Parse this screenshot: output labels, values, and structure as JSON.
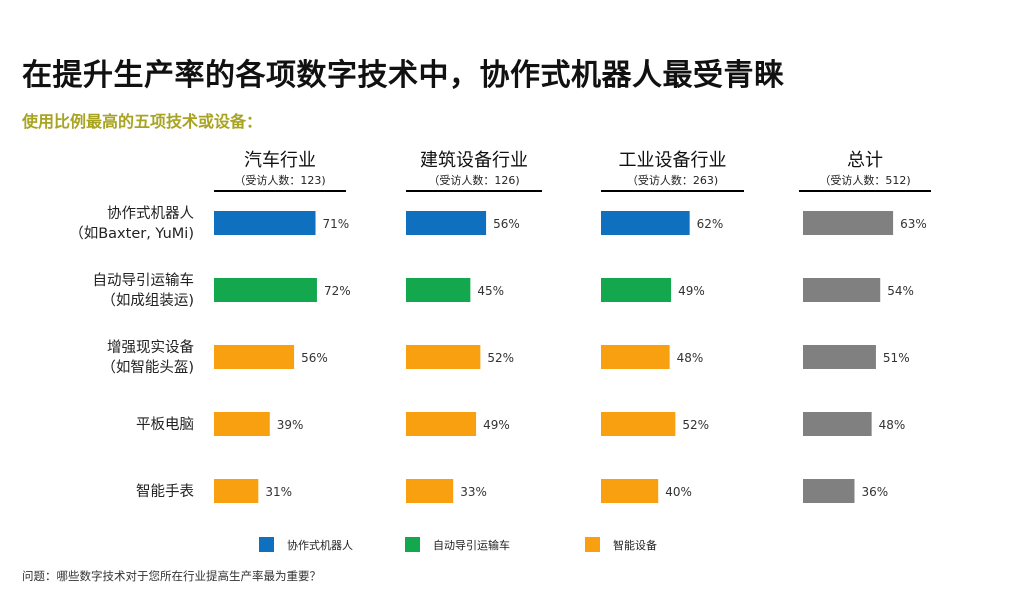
{
  "title": "在提升生产率的各项数字技术中，协作式机器人最受青睐",
  "subtitle": "使用比例最高的五项技术或设备：",
  "footnote": "问题：哪些数字技术对于您所在行业提高生产率最为重要？",
  "colors": {
    "robot": "#1070c0",
    "agv": "#14a84e",
    "smart": "#f8a010",
    "total": "#808080"
  },
  "chart_data": {
    "type": "bar",
    "orientation": "horizontal",
    "unit": "%",
    "categories": [
      [
        "协作式机器人",
        "（如Baxter, YuMi)"
      ],
      [
        "自动导引运输车",
        "（如成组装运)"
      ],
      [
        "增强现实设备",
        "（如智能头盔)"
      ],
      [
        "平板电脑"
      ],
      [
        "智能手表"
      ]
    ],
    "category_color_keys": [
      "robot",
      "agv",
      "smart",
      "smart",
      "smart"
    ],
    "panels": [
      {
        "title": "汽车行业",
        "subtitle": "（受访人数：123)",
        "values": [
          71,
          72,
          56,
          39,
          31
        ]
      },
      {
        "title": "建筑设备行业",
        "subtitle": "（受访人数：126)",
        "values": [
          56,
          45,
          52,
          49,
          33
        ]
      },
      {
        "title": "工业设备行业",
        "subtitle": "（受访人数：263)",
        "values": [
          62,
          49,
          48,
          52,
          40
        ]
      },
      {
        "title": "总计",
        "subtitle": "（受访人数：512)",
        "values": [
          63,
          54,
          51,
          48,
          36
        ],
        "color_key": "total"
      }
    ],
    "legend": [
      {
        "label": "协作式机器人",
        "color_key": "robot"
      },
      {
        "label": "自动导引运输车",
        "color_key": "agv"
      },
      {
        "label": "智能设备",
        "color_key": "smart"
      }
    ],
    "legend_position": "bottom"
  }
}
